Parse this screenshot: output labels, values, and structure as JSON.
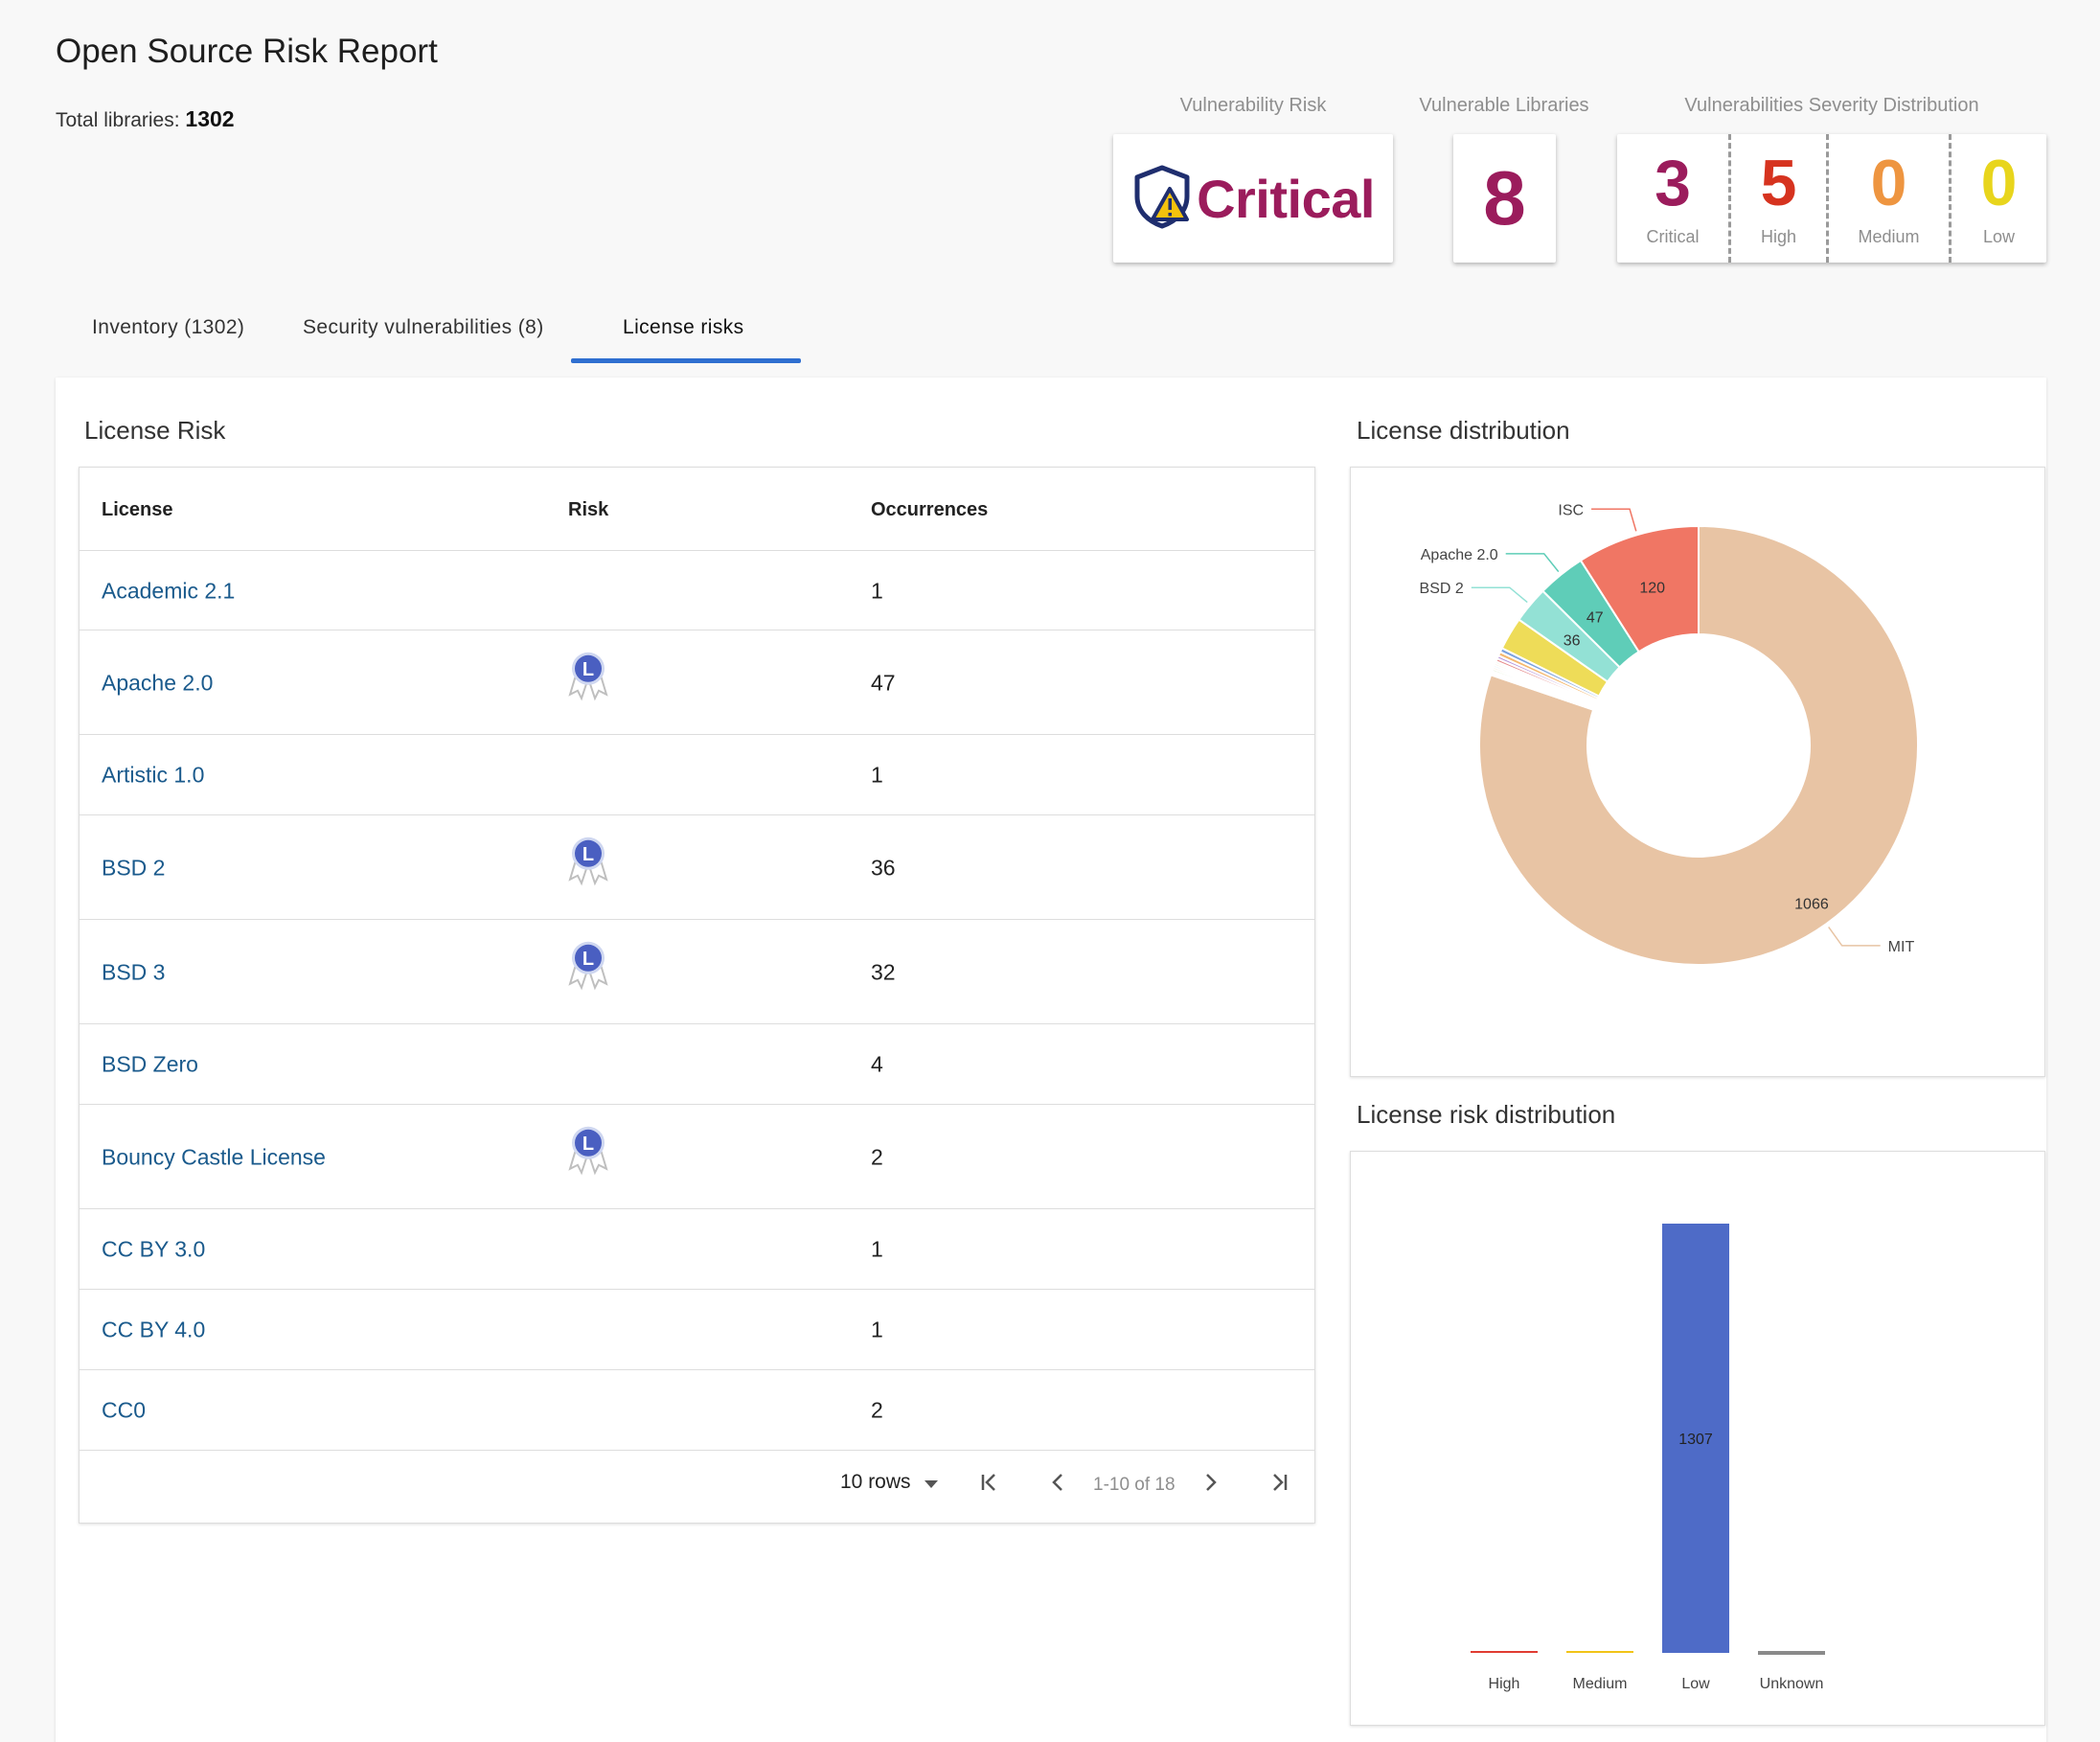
{
  "header": {
    "title": "Open Source Risk Report",
    "total_libraries_label": "Total libraries:",
    "total_libraries_value": "1302"
  },
  "cards": {
    "vulnerability_risk": {
      "label": "Vulnerability Risk",
      "value": "Critical",
      "color": "#9b1c5c"
    },
    "vulnerable_libraries": {
      "label": "Vulnerable Libraries",
      "value": "8",
      "color": "#9b1c5c"
    },
    "severity_distribution": {
      "label": "Vulnerabilities Severity Distribution",
      "items": [
        {
          "value": "3",
          "label": "Critical",
          "color": "#9b1c5c"
        },
        {
          "value": "5",
          "label": "High",
          "color": "#d6331f"
        },
        {
          "value": "0",
          "label": "Medium",
          "color": "#ee9540"
        },
        {
          "value": "0",
          "label": "Low",
          "color": "#e8d51c"
        }
      ]
    }
  },
  "tabs": [
    {
      "label": "Inventory (1302)",
      "active": false
    },
    {
      "label": "Security vulnerabilities (8)",
      "active": false
    },
    {
      "label": "License risks",
      "active": true
    }
  ],
  "license_risk": {
    "title": "License Risk",
    "columns": [
      "License",
      "Risk",
      "Occurrences"
    ],
    "rows": [
      {
        "license": "Academic 2.1",
        "risk_icon": "",
        "occurrences": "1"
      },
      {
        "license": "Apache 2.0",
        "risk_icon": "low-risk-ribbon-icon",
        "occurrences": "47"
      },
      {
        "license": "Artistic 1.0",
        "risk_icon": "",
        "occurrences": "1"
      },
      {
        "license": "BSD 2",
        "risk_icon": "low-risk-ribbon-icon",
        "occurrences": "36"
      },
      {
        "license": "BSD 3",
        "risk_icon": "low-risk-ribbon-icon",
        "occurrences": "32"
      },
      {
        "license": "BSD Zero",
        "risk_icon": "",
        "occurrences": "4"
      },
      {
        "license": "Bouncy Castle License",
        "risk_icon": "low-risk-ribbon-icon",
        "occurrences": "2"
      },
      {
        "license": "CC BY 3.0",
        "risk_icon": "",
        "occurrences": "1"
      },
      {
        "license": "CC BY 4.0",
        "risk_icon": "",
        "occurrences": "1"
      },
      {
        "license": "CC0",
        "risk_icon": "",
        "occurrences": "2"
      }
    ],
    "risk_badge_letter": "L",
    "pagination": {
      "rows_label": "10 rows",
      "range": "1-10 of 18"
    }
  },
  "chart_data": [
    {
      "type": "pie",
      "donut": true,
      "title": "License distribution",
      "slices": [
        {
          "label": "MIT",
          "value": 1066,
          "color": "#e8c4a4",
          "show_value": true,
          "show_label": true
        },
        {
          "label": "ISC",
          "value": 120,
          "color": "#f07664",
          "show_value": true,
          "show_label": true
        },
        {
          "label": "Apache 2.0",
          "value": 47,
          "color": "#5fcdb8",
          "show_value": true,
          "show_label": true
        },
        {
          "label": "BSD 2",
          "value": 36,
          "color": "#93e1d5",
          "show_value": true,
          "show_label": true
        },
        {
          "label": "",
          "value": 32,
          "color": "#eedc58",
          "show_value": false,
          "show_label": false
        },
        {
          "label": "",
          "value": 4,
          "color": "#7ba2e0",
          "show_value": false,
          "show_label": false
        },
        {
          "label": "",
          "value": 4,
          "color": "#f5b86e",
          "show_value": false,
          "show_label": false
        },
        {
          "label": "",
          "value": 3,
          "color": "#b695dc",
          "show_value": false,
          "show_label": false
        },
        {
          "label": "",
          "value": 3,
          "color": "#e68b8b",
          "show_value": false,
          "show_label": false
        },
        {
          "label": "",
          "value": 2,
          "color": "#8fcc7a",
          "show_value": false,
          "show_label": false
        },
        {
          "label": "",
          "value": 2,
          "color": "#f2a35c",
          "show_value": false,
          "show_label": false
        },
        {
          "label": "",
          "value": 2,
          "color": "#5fb2d8",
          "show_value": false,
          "show_label": false
        },
        {
          "label": "",
          "value": 2,
          "color": "#d6a45a",
          "show_value": false,
          "show_label": false
        },
        {
          "label": "",
          "value": 2,
          "color": "#a7d07a",
          "show_value": false,
          "show_label": false
        },
        {
          "label": "",
          "value": 1,
          "color": "#e07ab0",
          "show_value": false,
          "show_label": false
        },
        {
          "label": "",
          "value": 1,
          "color": "#7ad0c8",
          "show_value": false,
          "show_label": false
        },
        {
          "label": "",
          "value": 1,
          "color": "#c9b06a",
          "show_value": false,
          "show_label": false
        },
        {
          "label": "",
          "value": 1,
          "color": "#9ab0e0",
          "show_value": false,
          "show_label": false
        }
      ]
    },
    {
      "type": "bar",
      "title": "License risk distribution",
      "categories": [
        "High",
        "Medium",
        "Low",
        "Unknown"
      ],
      "values": [
        0,
        0,
        1307,
        0
      ],
      "colors": [
        "#e03c32",
        "#f2c418",
        "#4e6bc7",
        "#8a8a8a"
      ],
      "value_labels": [
        "",
        "",
        "1307",
        ""
      ],
      "ylim": [
        0,
        1307
      ]
    }
  ]
}
